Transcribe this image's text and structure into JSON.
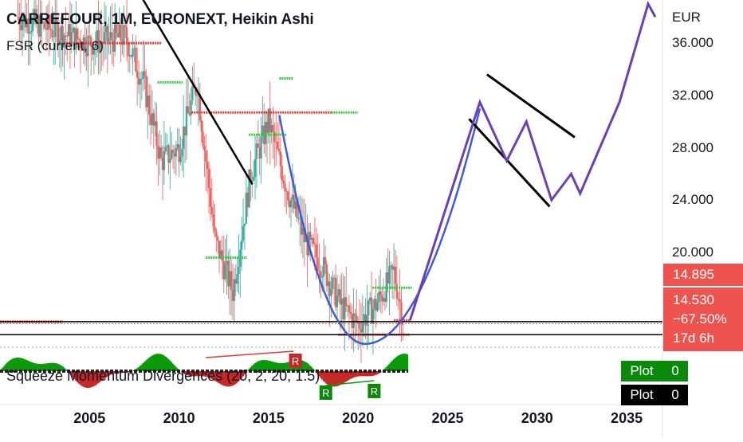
{
  "chart_data": {
    "type": "candlestick",
    "title": "CARREFOUR, 1M, EURONEXT, Heikin Ashi",
    "indicator_label": "FSR (current, 6)",
    "currency": "EUR",
    "y_ticks": [
      "36.000",
      "32.000",
      "28.000",
      "24.000",
      "20.000"
    ],
    "y_tick_values": [
      36,
      32,
      28,
      24,
      20
    ],
    "ylim": [
      12.5,
      39.3
    ],
    "x_ticks": [
      "2005",
      "2010",
      "2015",
      "2020",
      "2025",
      "2030",
      "2035"
    ],
    "x_tick_values": [
      2005,
      2010,
      2015,
      2020,
      2025,
      2030,
      2035
    ],
    "xlim": [
      2000.0,
      2037.0
    ],
    "price_labels": {
      "high": "14.895",
      "last": "14.530",
      "change": "−67.50%",
      "countdown": "17d 6h"
    },
    "approx_series": {
      "name": "",
      "x": [
        2001,
        2003,
        2005,
        2007,
        2008,
        2009,
        2010,
        2011,
        2012,
        2013,
        2014,
        2015,
        2016,
        2017,
        2018,
        2019,
        2020,
        2021,
        2022,
        2022.5
      ],
      "y": [
        38.0,
        37.0,
        36.0,
        36.5,
        33.0,
        27.0,
        28.0,
        33.0,
        21.0,
        17.0,
        26.0,
        30.0,
        25.0,
        21.0,
        19.0,
        16.0,
        14.5,
        16.0,
        18.5,
        15.0
      ]
    },
    "projection": {
      "x": [
        2022.9,
        2026.8,
        2028.3,
        2029.4,
        2030.8,
        2031.9,
        2032.4,
        2034.6,
        2036.2,
        2036.6
      ],
      "y": [
        14.8,
        31.5,
        27.0,
        30.0,
        24.0,
        26.0,
        24.5,
        31.5,
        39.0,
        38.0
      ]
    },
    "horizontal_levels": [
      14.7,
      13.7
    ],
    "squeeze_label": "Squeeze Momentum Divergences (20, 2, 20, 1.5)",
    "squeeze_markers": [
      "R",
      "R",
      "R"
    ],
    "plots": [
      {
        "label": "Plot",
        "value": "0",
        "color": "#0a8a0a"
      },
      {
        "label": "Plot",
        "value": "0",
        "color": "#000000"
      }
    ]
  }
}
